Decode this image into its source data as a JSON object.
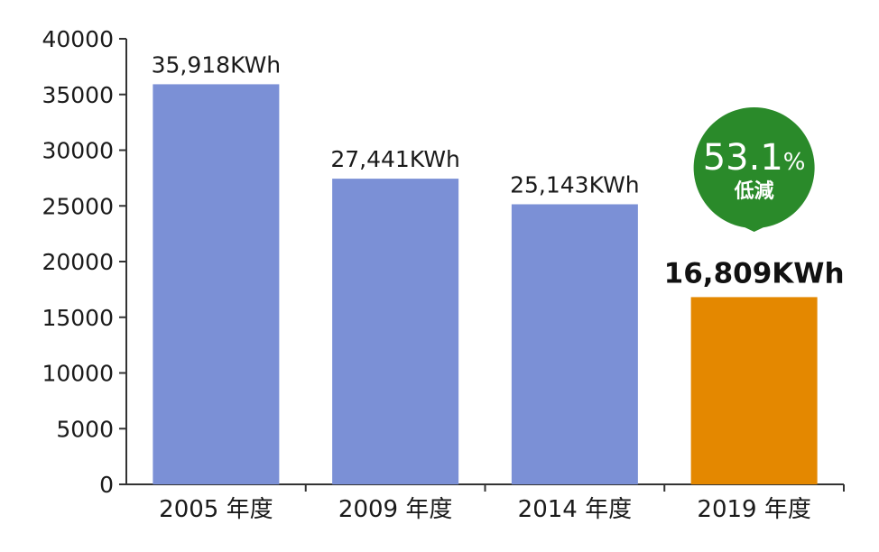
{
  "chart_data": {
    "type": "bar",
    "categories": [
      "2005 年度",
      "2009 年度",
      "2014 年度",
      "2019 年度"
    ],
    "values": [
      35918,
      27441,
      25143,
      16809
    ],
    "value_labels": [
      "35,918KWh",
      "27,441KWh",
      "25,143KWh",
      "16,809KWh"
    ],
    "yticks": [
      "0",
      "5000",
      "10000",
      "15000",
      "20000",
      "25000",
      "30000",
      "35000",
      "40000"
    ],
    "ylim": [
      0,
      40000
    ],
    "title": "",
    "xlabel": "",
    "ylabel": "",
    "grid": false,
    "highlight_index": 3,
    "colors": {
      "bar": "#7b90d6",
      "highlight": "#e48800",
      "callout": "#2a8a2a",
      "axis": "#333333"
    },
    "callout": {
      "number": "53.1",
      "unit": "%",
      "text": "低減"
    }
  }
}
